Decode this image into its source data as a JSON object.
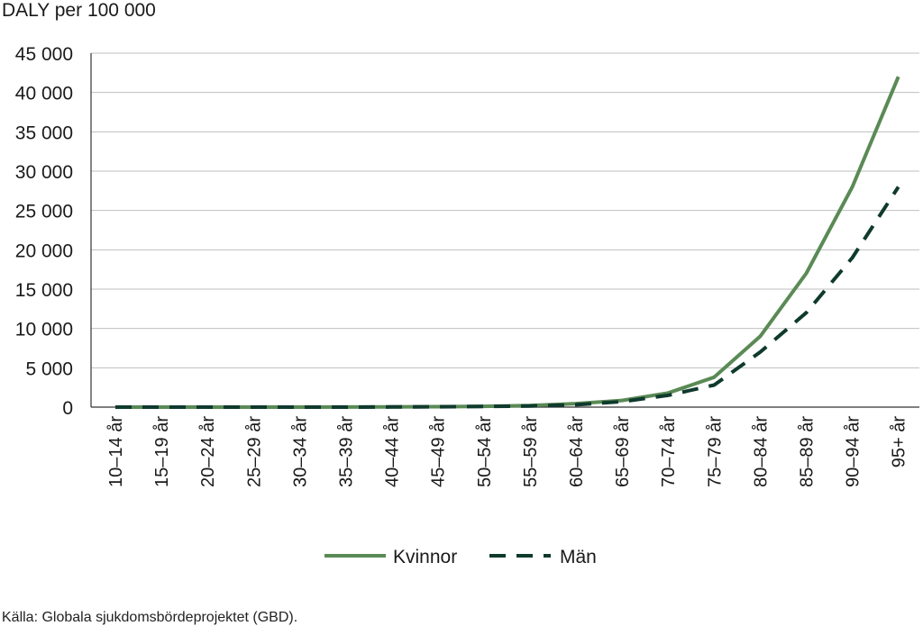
{
  "unit_label": "DALY per 100 000",
  "source": "Källa: Globala sjukdomsbördeprojektet (GBD).",
  "colors": {
    "kvinnor": "#5a8a55",
    "man": "#0f3a2e",
    "grid": "#bfbfbf",
    "axis": "#333333"
  },
  "chart_data": {
    "type": "line",
    "title": "",
    "xlabel": "",
    "ylabel": "DALY per 100 000",
    "ylim": [
      0,
      45000
    ],
    "yticks": [
      0,
      5000,
      10000,
      15000,
      20000,
      25000,
      30000,
      35000,
      40000,
      45000
    ],
    "ytick_labels": [
      "0",
      "5 000",
      "10 000",
      "15 000",
      "20 000",
      "25 000",
      "30 000",
      "35 000",
      "40 000",
      "45 000"
    ],
    "grid": true,
    "legend_position": "bottom",
    "categories": [
      "10–14 år",
      "15–19 år",
      "20–24 år",
      "25–29 år",
      "30–34 år",
      "35–39 år",
      "40–44 år",
      "45–49 år",
      "50–54 år",
      "55–59 år",
      "60–64 år",
      "65–69 år",
      "70–74 år",
      "75–79 år",
      "80–84 år",
      "85–89 år",
      "90–94 år",
      "95+ år"
    ],
    "series": [
      {
        "name": "Kvinnor",
        "style": "solid",
        "color": "#5a8a55",
        "values": [
          0,
          0,
          0,
          0,
          0,
          10,
          30,
          60,
          100,
          200,
          450,
          850,
          1800,
          3800,
          9000,
          17000,
          28000,
          42000
        ]
      },
      {
        "name": "Män",
        "style": "dashed",
        "color": "#0f3a2e",
        "values": [
          0,
          0,
          0,
          0,
          0,
          5,
          20,
          50,
          80,
          150,
          300,
          700,
          1500,
          2800,
          7000,
          12000,
          19000,
          28000
        ]
      }
    ]
  }
}
